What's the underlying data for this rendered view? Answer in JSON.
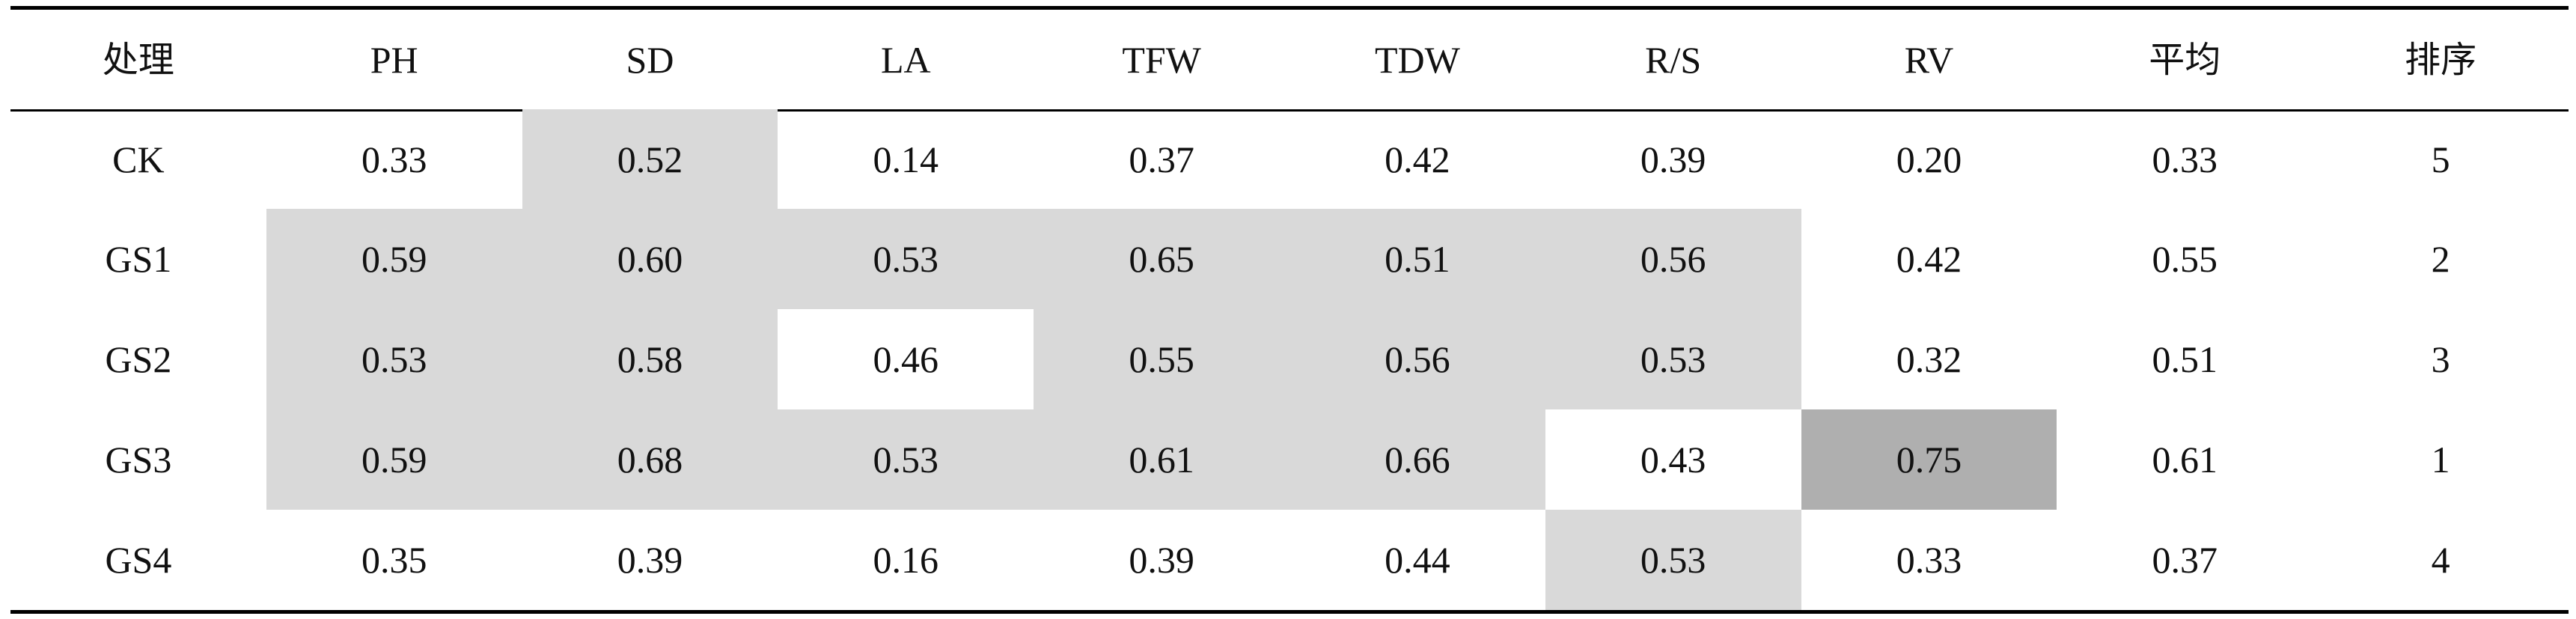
{
  "table": {
    "headers": [
      "处理",
      "PH",
      "SD",
      "LA",
      "TFW",
      "TDW",
      "R/S",
      "RV",
      "平均",
      "排序"
    ],
    "rows": [
      [
        "CK",
        "0.33",
        "0.52",
        "0.14",
        "0.37",
        "0.42",
        "0.39",
        "0.20",
        "0.33",
        "5"
      ],
      [
        "GS1",
        "0.59",
        "0.60",
        "0.53",
        "0.65",
        "0.51",
        "0.56",
        "0.42",
        "0.55",
        "2"
      ],
      [
        "GS2",
        "0.53",
        "0.58",
        "0.46",
        "0.55",
        "0.56",
        "0.53",
        "0.32",
        "0.51",
        "3"
      ],
      [
        "GS3",
        "0.59",
        "0.68",
        "0.53",
        "0.61",
        "0.66",
        "0.43",
        "0.75",
        "0.61",
        "1"
      ],
      [
        "GS4",
        "0.35",
        "0.39",
        "0.16",
        "0.39",
        "0.44",
        "0.53",
        "0.33",
        "0.37",
        "4"
      ]
    ],
    "highlight": [
      [
        0,
        0,
        1,
        0,
        0,
        0,
        0,
        0,
        0,
        0
      ],
      [
        0,
        1,
        1,
        1,
        1,
        1,
        1,
        0,
        0,
        0
      ],
      [
        0,
        1,
        1,
        0,
        1,
        1,
        1,
        0,
        0,
        0
      ],
      [
        0,
        1,
        1,
        1,
        1,
        1,
        0,
        2,
        0,
        0
      ],
      [
        0,
        0,
        0,
        0,
        0,
        0,
        1,
        0,
        0,
        0
      ]
    ],
    "colors": {
      "light_shade": "#d9d9d9",
      "dark_shade": "#afafaf",
      "rule": "#000000",
      "text": "#111111"
    }
  }
}
